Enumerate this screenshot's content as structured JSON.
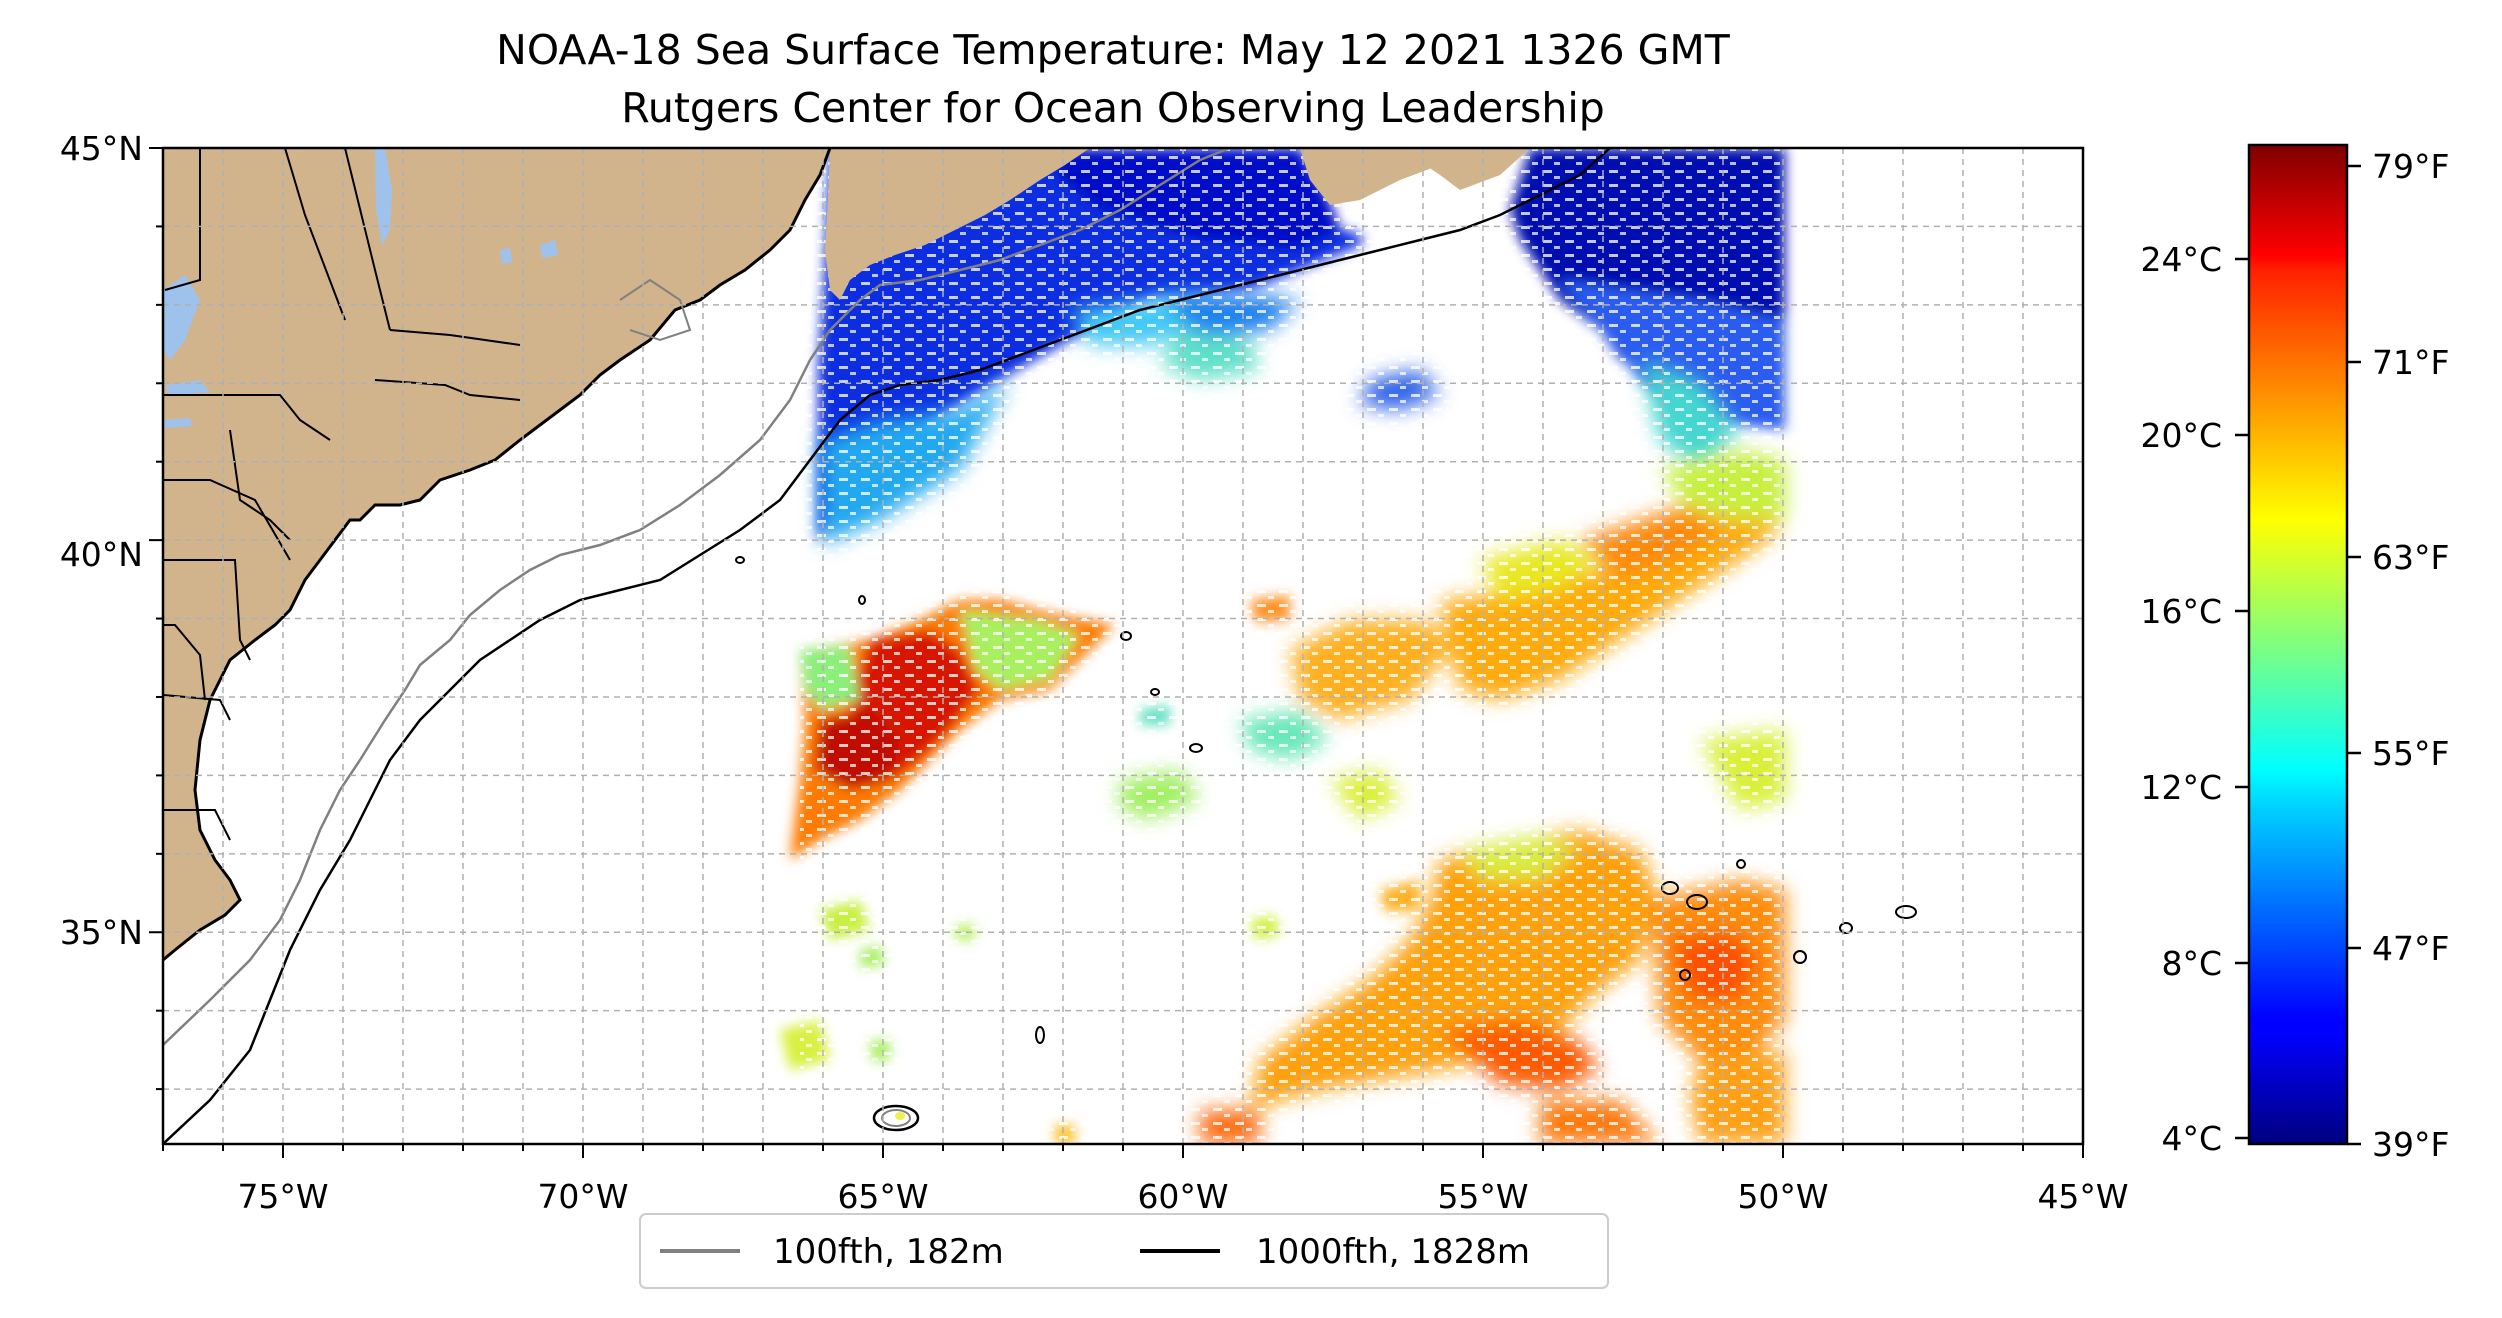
{
  "title": {
    "line1": "NOAA-18 Sea Surface Temperature: May 12 2021 1326 GMT",
    "line2": "Rutgers Center for Ocean Observing Leadership"
  },
  "map": {
    "lon_range": [
      -77,
      -45
    ],
    "lat_range": [
      32.3,
      45
    ],
    "lon_ticks": [
      "75°W",
      "70°W",
      "65°W",
      "60°W",
      "55°W",
      "50°W",
      "45°W"
    ],
    "lat_ticks": [
      "45°N",
      "40°N",
      "35°N"
    ],
    "land_color": "#d2b48c",
    "lake_color": "#9ec2eb",
    "gridlines": true
  },
  "legend": {
    "items": [
      {
        "label": "100fth, 182m",
        "color": "#808080"
      },
      {
        "label": "1000fth, 1828m",
        "color": "#000000"
      }
    ],
    "placement": "bottom-center"
  },
  "colorbar": {
    "colormap": "jet",
    "celsius_ticks": [
      "4°C",
      "8°C",
      "12°C",
      "16°C",
      "20°C",
      "24°C"
    ],
    "fahrenheit_ticks": [
      "39°F",
      "47°F",
      "55°F",
      "63°F",
      "71°F",
      "79°F"
    ]
  }
}
